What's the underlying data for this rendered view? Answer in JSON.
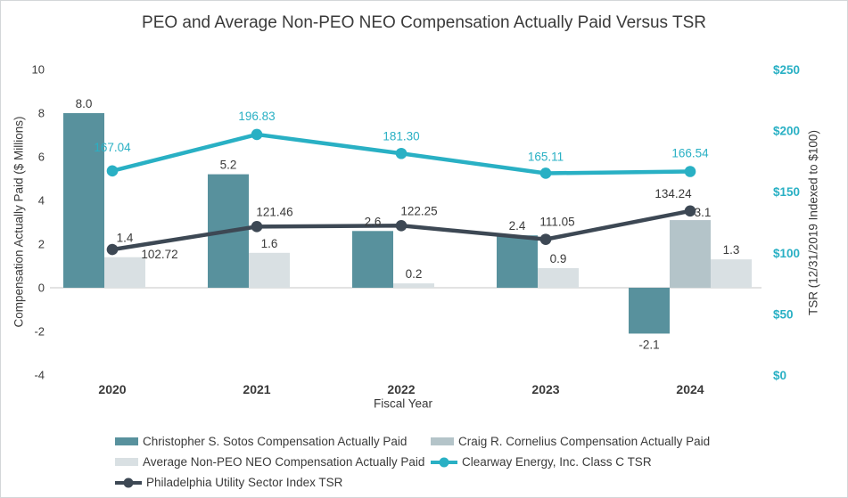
{
  "chart_data": {
    "type": "combo-bar-line",
    "title": "PEO and Average Non-PEO NEO Compensation Actually Paid Versus TSR",
    "categories": [
      "2020",
      "2021",
      "2022",
      "2023",
      "2024"
    ],
    "xlabel": "Fiscal Year",
    "gridlines": false,
    "legend_position": "bottom",
    "left_axis": {
      "label": "Compensation Actually Paid ($ Millions)",
      "min": -4,
      "max": 10,
      "tick_values": [
        10,
        8,
        6,
        4,
        2,
        0,
        -2,
        -4
      ],
      "tick_labels": [
        "10",
        "8",
        "6",
        "4",
        "2",
        "0",
        "-2",
        "-4"
      ]
    },
    "right_axis": {
      "label": "TSR (12/31/2019 Indexed to $100)",
      "min": 0,
      "max": 250,
      "tick_values": [
        250,
        200,
        150,
        100,
        50,
        0
      ],
      "tick_labels": [
        "$250",
        "$200",
        "$150",
        "$100",
        "$50",
        "$0"
      ],
      "tick_color": "#29b0c4"
    },
    "bar_series": [
      {
        "name": "Christopher S. Sotos Compensation Actually Paid",
        "color": "#58919d",
        "values": [
          8.0,
          5.2,
          2.6,
          2.4,
          -2.1
        ],
        "labels": [
          "8.0",
          "5.2",
          "2.6",
          "2.4",
          "-2.1"
        ]
      },
      {
        "name": "Craig R. Cornelius Compensation Actually Paid",
        "color": "#b4c4c9",
        "values": [
          null,
          null,
          null,
          null,
          3.1
        ],
        "labels": [
          null,
          null,
          null,
          null,
          "3.1"
        ]
      },
      {
        "name": "Average Non-PEO NEO Compensation Actually Paid",
        "color": "#d9e0e3",
        "values": [
          1.4,
          1.6,
          0.2,
          0.9,
          1.3
        ],
        "labels": [
          "1.4",
          "1.6",
          "0.2",
          "0.9",
          "1.3"
        ]
      }
    ],
    "line_series": [
      {
        "name": "Clearway Energy, Inc. Class C TSR",
        "color": "#29b0c4",
        "label_color": "#29b0c4",
        "axis": "right",
        "values": [
          167.04,
          196.83,
          181.3,
          165.11,
          166.54
        ],
        "labels": [
          "167.04",
          "196.83",
          "181.30",
          "165.11",
          "166.54"
        ]
      },
      {
        "name": "Philadelphia Utility Sector Index TSR",
        "color": "#3d4854",
        "label_color": "#3a3a3a",
        "axis": "right",
        "values": [
          102.72,
          121.46,
          122.25,
          111.05,
          134.24
        ],
        "labels": [
          "102.72",
          "121.46",
          "122.25",
          "111.05",
          "134.24"
        ]
      }
    ]
  },
  "legend": {
    "items": [
      {
        "label": "Christopher S. Sotos Compensation Actually Paid",
        "swatch": "rect",
        "color": "#58919d"
      },
      {
        "label": "Craig R. Cornelius Compensation Actually Paid",
        "swatch": "rect",
        "color": "#b4c4c9"
      },
      {
        "label": "Average Non-PEO NEO Compensation Actually Paid",
        "swatch": "rect",
        "color": "#d9e0e3"
      },
      {
        "label": "Clearway Energy, Inc. Class C TSR",
        "swatch": "line-dot",
        "color": "#29b0c4"
      },
      {
        "label": "Philadelphia Utility Sector Index TSR",
        "swatch": "line-dot",
        "color": "#3d4854"
      }
    ],
    "rows": [
      [
        0,
        1
      ],
      [
        2,
        3
      ],
      [
        4
      ]
    ]
  }
}
